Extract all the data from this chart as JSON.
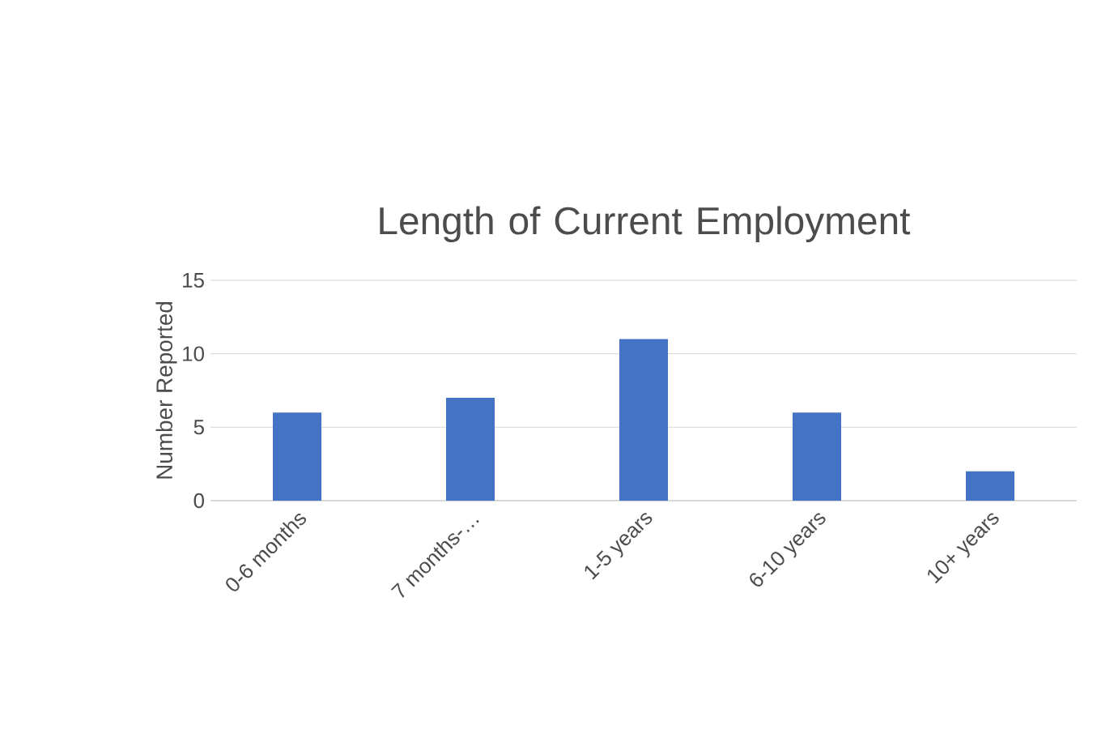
{
  "chart_data": {
    "type": "bar",
    "title": "Length of Current Employment",
    "ylabel": "Number Reported",
    "categories": [
      "0-6 months",
      "7 months-…",
      "1-5 years",
      "6-10 years",
      "10+ years"
    ],
    "values": [
      6,
      7,
      11,
      6,
      2
    ],
    "color": "#4472c4",
    "ylim": [
      0,
      15
    ],
    "yticks": [
      0,
      5,
      10,
      15
    ],
    "grid": "y"
  }
}
